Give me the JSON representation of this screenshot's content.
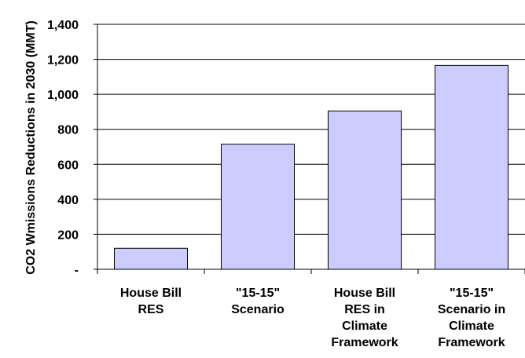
{
  "chart_data": {
    "type": "bar",
    "title": "",
    "xlabel": "",
    "ylabel": "CO2 Wmissions Reductions in 2030 (MMT)",
    "ylim": [
      0,
      1400
    ],
    "yticks": [
      {
        "value": 0,
        "label": "-"
      },
      {
        "value": 200,
        "label": "200"
      },
      {
        "value": 400,
        "label": "400"
      },
      {
        "value": 600,
        "label": "600"
      },
      {
        "value": 800,
        "label": "800"
      },
      {
        "value": 1000,
        "label": "1,000"
      },
      {
        "value": 1200,
        "label": "1,200"
      },
      {
        "value": 1400,
        "label": "1,400"
      }
    ],
    "grid": true,
    "categories": [
      [
        "House Bill",
        "RES"
      ],
      [
        "\"15-15\"",
        "Scenario"
      ],
      [
        "House Bill",
        "RES in",
        "Climate",
        "Framework"
      ],
      [
        "\"15-15\"",
        "Scenario in",
        "Climate",
        "Framework"
      ]
    ],
    "values": [
      120,
      715,
      905,
      1165
    ],
    "bar_color": "#ccccff"
  }
}
